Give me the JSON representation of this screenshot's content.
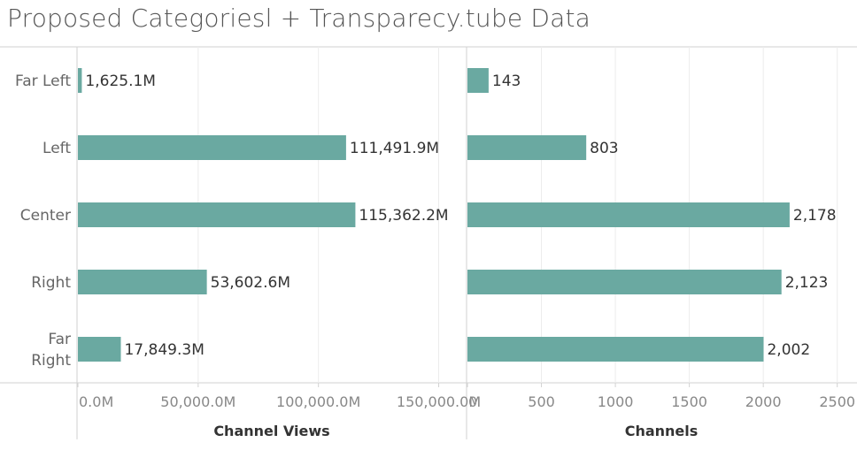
{
  "title": "Proposed Categoriesl + Transparecy.tube Data",
  "colors": {
    "bar": "#6aa9a1",
    "grid": "#ececec",
    "axis": "#d2d2d2"
  },
  "chart_data": [
    {
      "type": "bar",
      "orientation": "horizontal",
      "title": "Proposed Categoriesl + Transparecy.tube Data",
      "xlabel": "Channel Views",
      "ylabel": "",
      "categories": [
        [
          "Far Left"
        ],
        [
          "Left"
        ],
        [
          "Center"
        ],
        [
          "Right"
        ],
        [
          "Far",
          "Right"
        ]
      ],
      "values": [
        1625.1,
        111491.9,
        115362.2,
        53602.6,
        17849.3
      ],
      "value_labels": [
        "1,625.1M",
        "111,491.9M",
        "115,362.2M",
        "53,602.6M",
        "17,849.3M"
      ],
      "xlim": [
        0,
        160000
      ],
      "ticks": [
        0,
        50000,
        100000,
        150000
      ],
      "tick_labels": [
        "0.0M",
        "50,000.0M",
        "100,000.0M",
        "150,000.0M"
      ],
      "grid": true
    },
    {
      "type": "bar",
      "orientation": "horizontal",
      "xlabel": "Channels",
      "ylabel": "",
      "categories": [
        [
          "Far Left"
        ],
        [
          "Left"
        ],
        [
          "Center"
        ],
        [
          "Right"
        ],
        [
          "Far",
          "Right"
        ]
      ],
      "values": [
        143,
        803,
        2178,
        2123,
        2002
      ],
      "value_labels": [
        "143",
        "803",
        "2,178",
        "2,123",
        "2,002"
      ],
      "xlim": [
        0,
        2600
      ],
      "ticks": [
        0,
        500,
        1000,
        1500,
        2000,
        2500
      ],
      "tick_labels": [
        "0",
        "500",
        "1000",
        "1500",
        "2000",
        "2500"
      ],
      "grid": true
    }
  ]
}
